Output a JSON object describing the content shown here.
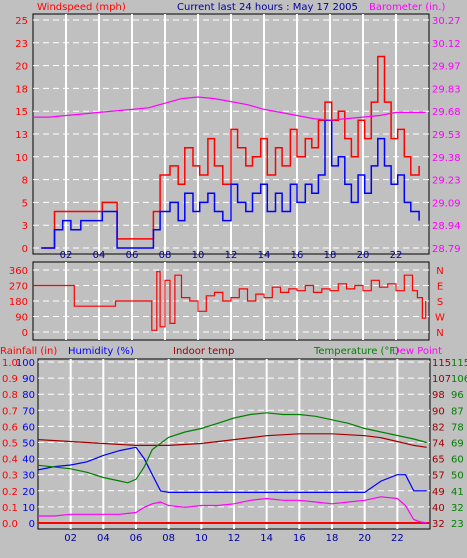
{
  "header": {
    "windspeed_label": "Windspeed (mph)",
    "title": "Current last 24 hours : May 17 2005",
    "barometer_label": "Barometer (in.)"
  },
  "colors": {
    "background": "#c0c0c0",
    "grid": "#ffffff",
    "windspeed": "#ff0000",
    "wind_avg": "#0000ff",
    "barometer": "#ff00ff",
    "rain": "#ff0000",
    "humidity": "#0000ff",
    "indoor": "#a00000",
    "temperature": "#008000",
    "dewpoint": "#ff00ff"
  },
  "chart_data": [
    {
      "type": "line",
      "name": "wind-barometer",
      "x_ticks": [
        "02",
        "04",
        "06",
        "08",
        "10",
        "12",
        "14",
        "16",
        "18",
        "20",
        "22"
      ],
      "x_range": [
        0,
        24
      ],
      "y_left_ticks": [
        "0",
        "3",
        "5",
        "8",
        "10",
        "13",
        "15",
        "18",
        "20",
        "23",
        "25"
      ],
      "y_left_range": [
        0,
        25
      ],
      "y_right_ticks": [
        "28.79",
        "28.94",
        "29.09",
        "29.23",
        "29.38",
        "29.53",
        "29.68",
        "29.83",
        "29.97",
        "30.12",
        "30.27"
      ],
      "y_right_range": [
        28.79,
        30.27
      ],
      "barometer": {
        "x": [
          0,
          1,
          2,
          3,
          4,
          5,
          6,
          7,
          8,
          9,
          10,
          11,
          12,
          13,
          14,
          15,
          16,
          17,
          18,
          19,
          20,
          21,
          22,
          23,
          23.8
        ],
        "y": [
          29.64,
          29.64,
          29.65,
          29.66,
          29.67,
          29.68,
          29.69,
          29.7,
          29.73,
          29.76,
          29.77,
          29.76,
          29.74,
          29.72,
          29.69,
          29.67,
          29.65,
          29.63,
          29.62,
          29.63,
          29.64,
          29.65,
          29.67,
          29.67,
          29.67
        ]
      },
      "gust": {
        "x": [
          0.5,
          1.3,
          1.8,
          2.3,
          2.9,
          4.2,
          5.1,
          6.0,
          7.3,
          7.7,
          8.3,
          8.8,
          9.2,
          9.7,
          10.1,
          10.6,
          11.0,
          11.5,
          12.0,
          12.4,
          12.9,
          13.3,
          13.8,
          14.2,
          14.7,
          15.1,
          15.6,
          16.0,
          16.5,
          16.9,
          17.3,
          17.7,
          18.1,
          18.5,
          18.9,
          19.3,
          19.7,
          20.1,
          20.5,
          20.9,
          21.3,
          21.7,
          22.1,
          22.5,
          22.9,
          23.4
        ],
        "y": [
          0,
          4,
          4,
          4,
          4,
          5,
          1,
          1,
          4,
          8,
          9,
          7,
          11,
          9,
          8,
          12,
          9,
          7,
          13,
          11,
          9,
          10,
          12,
          8,
          11,
          9,
          13,
          10,
          12,
          11,
          14,
          16,
          14,
          15,
          12,
          10,
          14,
          12,
          16,
          21,
          16,
          12,
          13,
          10,
          8,
          9
        ]
      },
      "average": {
        "x": [
          0.5,
          1.3,
          1.8,
          2.3,
          2.9,
          4.2,
          5.1,
          6.0,
          7.3,
          7.7,
          8.3,
          8.8,
          9.2,
          9.7,
          10.1,
          10.6,
          11.0,
          11.5,
          12.0,
          12.4,
          12.9,
          13.3,
          13.8,
          14.2,
          14.7,
          15.1,
          15.6,
          16.0,
          16.5,
          16.9,
          17.3,
          17.7,
          18.1,
          18.5,
          18.9,
          19.3,
          19.7,
          20.1,
          20.5,
          20.9,
          21.3,
          21.7,
          22.1,
          22.5,
          22.9,
          23.4
        ],
        "y": [
          0,
          2,
          3,
          2,
          3,
          4,
          0,
          0,
          2,
          4,
          5,
          3,
          6,
          4,
          5,
          6,
          4,
          3,
          7,
          5,
          4,
          6,
          7,
          4,
          6,
          4,
          7,
          5,
          7,
          6,
          8,
          14,
          9,
          10,
          7,
          5,
          8,
          6,
          9,
          12,
          9,
          7,
          8,
          5,
          4,
          3
        ]
      }
    },
    {
      "type": "scatter",
      "name": "wind-direction",
      "x_range": [
        0,
        24
      ],
      "y_left_ticks": [
        "0",
        "90",
        "180",
        "270",
        "360"
      ],
      "y_left_range": [
        0,
        360
      ],
      "y_right_ticks": [
        "N",
        "E",
        "S",
        "W",
        "N"
      ],
      "direction": {
        "x": [
          0,
          2,
          2.5,
          4,
          5,
          6,
          7,
          7.2,
          7.5,
          7.7,
          8,
          8.3,
          8.6,
          9,
          9.5,
          10,
          10.5,
          11,
          11.5,
          12,
          12.5,
          13,
          13.5,
          14,
          14.5,
          15,
          15.5,
          16,
          16.5,
          17,
          17.5,
          18,
          18.5,
          19,
          19.5,
          20,
          20.5,
          21,
          21.5,
          22,
          22.5,
          23,
          23.3,
          23.6,
          23.8
        ],
        "y": [
          270,
          270,
          150,
          150,
          180,
          180,
          180,
          10,
          350,
          30,
          300,
          50,
          330,
          200,
          180,
          120,
          210,
          230,
          180,
          200,
          250,
          180,
          220,
          200,
          260,
          230,
          250,
          240,
          270,
          230,
          250,
          240,
          280,
          250,
          270,
          240,
          300,
          260,
          280,
          240,
          330,
          240,
          200,
          80,
          180
        ]
      }
    },
    {
      "type": "line",
      "name": "rain-humidity-temperature",
      "x_range": [
        0,
        24
      ],
      "rainfall_label": "Rainfall (in)",
      "humidity_label": "Humidity (%)",
      "indoor_label": "Indoor temp",
      "temperature_label": "Temperature (°F)",
      "dewpoint_label": "Dew Point",
      "y_rain_ticks": [
        "0.0",
        "0.1",
        "0.2",
        "0.3",
        "0.4",
        "0.5",
        "0.6",
        "0.7",
        "0.8",
        "0.9",
        "1.0"
      ],
      "y_rain_range": [
        0,
        1
      ],
      "y_humidity_ticks": [
        "0",
        "10",
        "20",
        "30",
        "40",
        "50",
        "60",
        "70",
        "80",
        "90",
        "100"
      ],
      "y_humidity_range": [
        0,
        100
      ],
      "y_indoor_ticks": [
        "32",
        "40",
        "49",
        "57",
        "65",
        "74",
        "82",
        "90",
        "98",
        "107",
        "115"
      ],
      "y_indoor_range": [
        32,
        115
      ],
      "y_temp_ticks": [
        "23",
        "32",
        "41",
        "50",
        "60",
        "69",
        "78",
        "87",
        "96",
        "106",
        "115"
      ],
      "y_temp_range": [
        23,
        115
      ],
      "humidity": {
        "x": [
          0,
          1,
          2,
          3,
          4,
          5,
          6,
          6.5,
          7,
          7.5,
          8,
          10,
          12,
          14,
          16,
          18,
          20,
          21,
          22,
          22.5,
          23,
          23.8
        ],
        "y": [
          33,
          35,
          36,
          38,
          42,
          45,
          47,
          40,
          30,
          20,
          19,
          19,
          19,
          19,
          19,
          19,
          19,
          26,
          30,
          30,
          20,
          20
        ]
      },
      "indoor_temp": {
        "x": [
          0,
          2,
          4,
          6,
          8,
          10,
          12,
          14,
          16,
          18,
          20,
          21,
          22,
          23,
          23.8
        ],
        "y": [
          75,
          74,
          73,
          72,
          72,
          73,
          75,
          77,
          78,
          78,
          77,
          76,
          74,
          72,
          71
        ]
      },
      "temperature": {
        "x": [
          0,
          1,
          2,
          3,
          4,
          5,
          5.5,
          6,
          6.5,
          7,
          8,
          9,
          10,
          11,
          12,
          13,
          14,
          15,
          16,
          17,
          18,
          19,
          20,
          21,
          22,
          23,
          23.8
        ],
        "y": [
          56,
          55,
          54,
          52,
          49,
          47,
          46,
          48,
          55,
          65,
          72,
          75,
          77,
          80,
          83,
          85,
          86,
          85,
          85,
          84,
          82,
          80,
          77,
          75,
          73,
          71,
          69
        ]
      },
      "dewpoint": {
        "x": [
          0,
          1,
          2,
          3,
          4,
          5,
          6,
          6.5,
          7,
          7.5,
          8,
          9,
          10,
          11,
          12,
          13,
          14,
          15,
          16,
          17,
          18,
          19,
          20,
          21,
          22,
          22.5,
          23,
          23.3,
          23.8
        ],
        "y": [
          27,
          27,
          28,
          28,
          28,
          28,
          29,
          32,
          34,
          35,
          33,
          32,
          33,
          33,
          34,
          36,
          37,
          36,
          36,
          35,
          34,
          35,
          36,
          38,
          37,
          33,
          25,
          24,
          23
        ]
      },
      "rainfall": {
        "x": [
          0,
          24
        ],
        "y": [
          0,
          0
        ]
      }
    }
  ]
}
